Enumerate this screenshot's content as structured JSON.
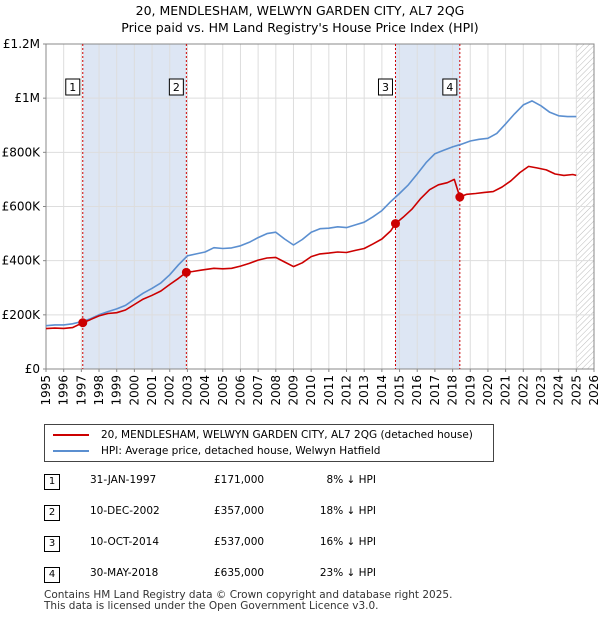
{
  "title_line1": "20, MENDLESHAM, WELWYN GARDEN CITY, AL7 2QG",
  "title_line2": "Price paid vs. HM Land Registry's House Price Index (HPI)",
  "colors": {
    "red": "#cc0000",
    "blue": "#5b8fd0",
    "shade": "#dde6f4",
    "grid": "#dddddd"
  },
  "chart_data": {
    "type": "line",
    "xlim": [
      1995,
      2026
    ],
    "ylim": [
      0,
      1200000
    ],
    "x_ticks": [
      "1995",
      "1996",
      "1997",
      "1998",
      "1999",
      "2000",
      "2001",
      "2002",
      "2003",
      "2004",
      "2005",
      "2006",
      "2007",
      "2008",
      "2009",
      "2010",
      "2011",
      "2012",
      "2013",
      "2014",
      "2015",
      "2016",
      "2017",
      "2018",
      "2019",
      "2020",
      "2021",
      "2022",
      "2023",
      "2024",
      "2025",
      "2026"
    ],
    "y_ticks": [
      {
        "value": 0,
        "label": "£0"
      },
      {
        "value": 200000,
        "label": "£200K"
      },
      {
        "value": 400000,
        "label": "£400K"
      },
      {
        "value": 600000,
        "label": "£600K"
      },
      {
        "value": 800000,
        "label": "£800K"
      },
      {
        "value": 1000000,
        "label": "£1M"
      },
      {
        "value": 1200000,
        "label": "£1.2M"
      }
    ],
    "shaded_ranges": [
      [
        1997.08,
        2002.94
      ],
      [
        2014.77,
        2018.41
      ]
    ],
    "future_start": 2025.0,
    "series": [
      {
        "name": "20, MENDLESHAM, WELWYN GARDEN CITY, AL7 2QG (detached house)",
        "color": "#cc0000",
        "points": [
          [
            1995.0,
            149000
          ],
          [
            1995.5,
            151000
          ],
          [
            1996.0,
            150000
          ],
          [
            1996.5,
            153000
          ],
          [
            1997.08,
            171000
          ],
          [
            1997.5,
            182000
          ],
          [
            1998.0,
            196000
          ],
          [
            1998.5,
            205000
          ],
          [
            1999.0,
            208000
          ],
          [
            1999.5,
            218000
          ],
          [
            2000.0,
            238000
          ],
          [
            2000.5,
            258000
          ],
          [
            2001.0,
            272000
          ],
          [
            2001.5,
            288000
          ],
          [
            2002.0,
            312000
          ],
          [
            2002.5,
            335000
          ],
          [
            2002.94,
            357000
          ],
          [
            2003.3,
            360000
          ],
          [
            2003.8,
            365000
          ],
          [
            2004.5,
            372000
          ],
          [
            2005.0,
            370000
          ],
          [
            2005.5,
            372000
          ],
          [
            2006.0,
            380000
          ],
          [
            2006.5,
            390000
          ],
          [
            2007.0,
            402000
          ],
          [
            2007.5,
            410000
          ],
          [
            2008.0,
            412000
          ],
          [
            2008.5,
            395000
          ],
          [
            2009.0,
            378000
          ],
          [
            2009.5,
            392000
          ],
          [
            2010.0,
            415000
          ],
          [
            2010.5,
            425000
          ],
          [
            2011.0,
            428000
          ],
          [
            2011.5,
            432000
          ],
          [
            2012.0,
            430000
          ],
          [
            2012.5,
            438000
          ],
          [
            2013.0,
            445000
          ],
          [
            2013.5,
            462000
          ],
          [
            2014.0,
            480000
          ],
          [
            2014.5,
            510000
          ],
          [
            2014.77,
            537000
          ],
          [
            2015.2,
            560000
          ],
          [
            2015.7,
            590000
          ],
          [
            2016.2,
            630000
          ],
          [
            2016.7,
            662000
          ],
          [
            2017.2,
            680000
          ],
          [
            2017.7,
            688000
          ],
          [
            2018.1,
            700000
          ],
          [
            2018.41,
            635000
          ],
          [
            2018.8,
            645000
          ],
          [
            2019.3,
            648000
          ],
          [
            2019.8,
            652000
          ],
          [
            2020.3,
            655000
          ],
          [
            2020.8,
            672000
          ],
          [
            2021.3,
            695000
          ],
          [
            2021.8,
            725000
          ],
          [
            2022.3,
            748000
          ],
          [
            2022.8,
            742000
          ],
          [
            2023.3,
            735000
          ],
          [
            2023.8,
            720000
          ],
          [
            2024.3,
            715000
          ],
          [
            2024.8,
            718000
          ],
          [
            2025.0,
            715000
          ]
        ]
      },
      {
        "name": "HPI: Average price, detached house, Welwyn Hatfield",
        "color": "#5b8fd0",
        "points": [
          [
            1995.0,
            160000
          ],
          [
            1995.5,
            163000
          ],
          [
            1996.0,
            163000
          ],
          [
            1996.5,
            167000
          ],
          [
            1997.0,
            175000
          ],
          [
            1997.5,
            185000
          ],
          [
            1998.0,
            200000
          ],
          [
            1998.5,
            212000
          ],
          [
            1999.0,
            222000
          ],
          [
            1999.5,
            235000
          ],
          [
            2000.0,
            258000
          ],
          [
            2000.5,
            280000
          ],
          [
            2001.0,
            298000
          ],
          [
            2001.5,
            318000
          ],
          [
            2002.0,
            348000
          ],
          [
            2002.5,
            385000
          ],
          [
            2003.0,
            418000
          ],
          [
            2003.5,
            425000
          ],
          [
            2004.0,
            432000
          ],
          [
            2004.5,
            448000
          ],
          [
            2005.0,
            445000
          ],
          [
            2005.5,
            447000
          ],
          [
            2006.0,
            455000
          ],
          [
            2006.5,
            468000
          ],
          [
            2007.0,
            485000
          ],
          [
            2007.5,
            500000
          ],
          [
            2008.0,
            505000
          ],
          [
            2008.5,
            480000
          ],
          [
            2009.0,
            458000
          ],
          [
            2009.5,
            478000
          ],
          [
            2010.0,
            505000
          ],
          [
            2010.5,
            518000
          ],
          [
            2011.0,
            520000
          ],
          [
            2011.5,
            525000
          ],
          [
            2012.0,
            522000
          ],
          [
            2012.5,
            532000
          ],
          [
            2013.0,
            542000
          ],
          [
            2013.5,
            562000
          ],
          [
            2014.0,
            585000
          ],
          [
            2014.5,
            618000
          ],
          [
            2015.0,
            648000
          ],
          [
            2015.5,
            680000
          ],
          [
            2016.0,
            720000
          ],
          [
            2016.5,
            762000
          ],
          [
            2017.0,
            795000
          ],
          [
            2017.5,
            808000
          ],
          [
            2018.0,
            820000
          ],
          [
            2018.5,
            830000
          ],
          [
            2019.0,
            842000
          ],
          [
            2019.5,
            848000
          ],
          [
            2020.0,
            852000
          ],
          [
            2020.5,
            870000
          ],
          [
            2021.0,
            905000
          ],
          [
            2021.5,
            942000
          ],
          [
            2022.0,
            975000
          ],
          [
            2022.5,
            990000
          ],
          [
            2023.0,
            972000
          ],
          [
            2023.5,
            948000
          ],
          [
            2024.0,
            935000
          ],
          [
            2024.5,
            932000
          ],
          [
            2025.0,
            932000
          ]
        ]
      }
    ],
    "sales": [
      {
        "label": "1",
        "x": 1997.08,
        "value": 171000
      },
      {
        "label": "2",
        "x": 2002.94,
        "value": 357000
      },
      {
        "label": "3",
        "x": 2014.77,
        "value": 537000
      },
      {
        "label": "4",
        "x": 2018.41,
        "value": 635000
      }
    ]
  },
  "legend": {
    "red_label": "20, MENDLESHAM, WELWYN GARDEN CITY, AL7 2QG (detached house)",
    "blue_label": "HPI: Average price, detached house, Welwyn Hatfield"
  },
  "sales_table": [
    {
      "num": "1",
      "date": "31-JAN-1997",
      "price": "£171,000",
      "hpi": "8% ↓ HPI"
    },
    {
      "num": "2",
      "date": "10-DEC-2002",
      "price": "£357,000",
      "hpi": "18% ↓ HPI"
    },
    {
      "num": "3",
      "date": "10-OCT-2014",
      "price": "£537,000",
      "hpi": "16% ↓ HPI"
    },
    {
      "num": "4",
      "date": "30-MAY-2018",
      "price": "£635,000",
      "hpi": "23% ↓ HPI"
    }
  ],
  "footer_line1": "Contains HM Land Registry data © Crown copyright and database right 2025.",
  "footer_line2": "This data is licensed under the Open Government Licence v3.0."
}
